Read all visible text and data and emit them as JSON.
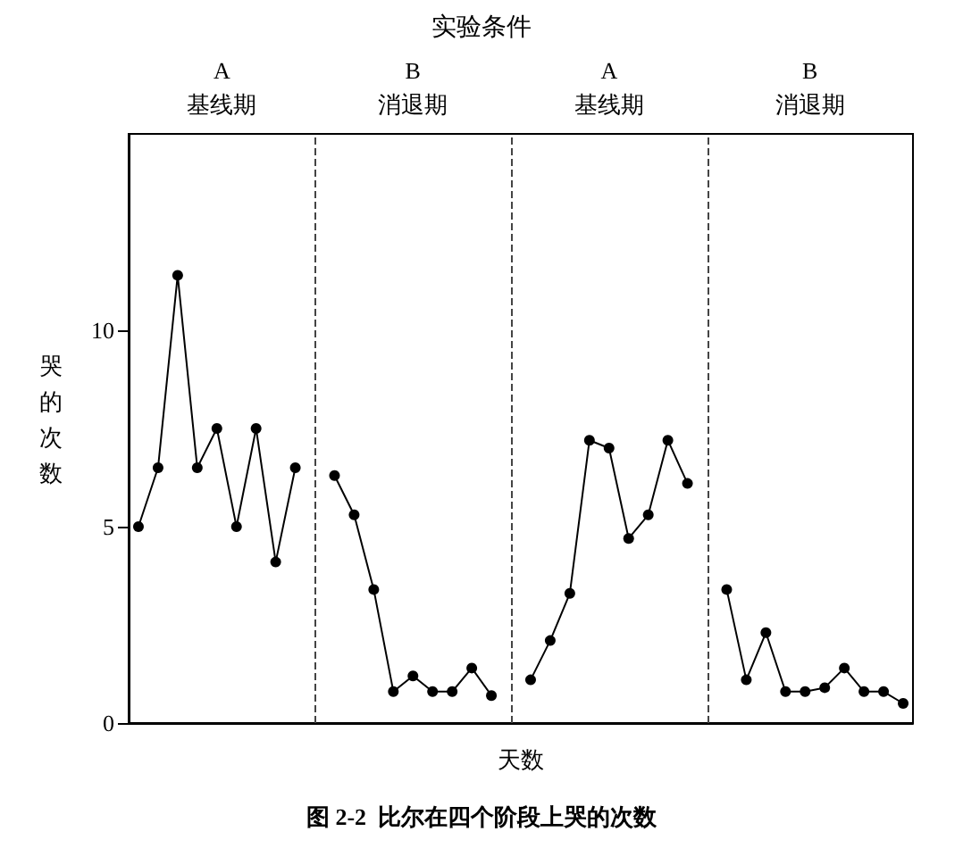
{
  "chart_data": {
    "type": "line",
    "title": "图 2-2  比尔在四个阶段上哭的次数",
    "subtitle": "实验条件",
    "xlabel": "天数",
    "ylabel": "哭的次数",
    "categories": [
      null,
      null,
      null,
      null,
      null,
      null,
      null,
      null,
      null,
      null,
      null,
      null,
      null,
      null,
      null,
      null,
      null,
      null,
      null,
      null,
      null,
      null,
      null,
      null,
      null,
      null,
      null,
      null,
      null,
      null,
      null,
      null,
      null,
      null,
      null,
      null,
      null,
      null,
      null,
      null
    ],
    "ylim": [
      0,
      15
    ],
    "yticks": [
      0,
      5,
      10
    ],
    "grid": "x",
    "marker": "circle",
    "line_style": "solid",
    "series": [
      {
        "color": "#000000",
        "values": [
          5.0,
          6.5,
          11.4,
          6.5,
          7.5,
          5.0,
          7.5,
          4.1,
          6.5,
          null,
          6.3,
          5.3,
          3.4,
          0.8,
          1.2,
          0.8,
          0.8,
          1.4,
          0.7,
          null,
          1.1,
          2.1,
          3.3,
          7.2,
          7.0,
          4.7,
          5.3,
          7.2,
          6.1,
          null,
          3.4,
          1.1,
          2.3,
          0.8,
          0.8,
          0.9,
          1.4,
          0.8,
          0.8,
          0.5
        ]
      }
    ],
    "annotations": [
      "A\n基线期",
      "B\n消退期",
      "A\n基线期",
      "B\n消退期"
    ]
  }
}
